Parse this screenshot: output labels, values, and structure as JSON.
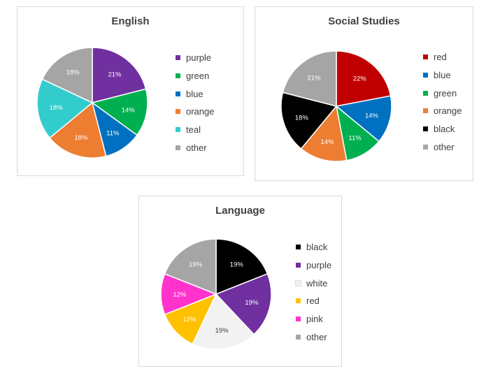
{
  "chart_data": [
    {
      "type": "pie",
      "title": "English",
      "categories": [
        "purple",
        "green",
        "blue",
        "orange",
        "teal",
        "other"
      ],
      "values": [
        21,
        14,
        11,
        18,
        18,
        18
      ],
      "labels": [
        "21%",
        "14%",
        "11%",
        "18%",
        "18%",
        "18%"
      ],
      "colors": [
        "#7030a0",
        "#00b050",
        "#0070c0",
        "#ed7d31",
        "#33cccc",
        "#a5a5a5"
      ],
      "label_colors": [
        "#ffffff",
        "#ffffff",
        "#ffffff",
        "#ffffff",
        "#ffffff",
        "#ffffff"
      ],
      "legend_position": "right"
    },
    {
      "type": "pie",
      "title": "Social Studies",
      "categories": [
        "red",
        "blue",
        "green",
        "orange",
        "black",
        "other"
      ],
      "values": [
        22,
        14,
        11,
        14,
        18,
        21
      ],
      "labels": [
        "22%",
        "14%",
        "11%",
        "14%",
        "18%",
        "21%"
      ],
      "colors": [
        "#c00000",
        "#0070c0",
        "#00b050",
        "#ed7d31",
        "#000000",
        "#a5a5a5"
      ],
      "label_colors": [
        "#ffffff",
        "#ffffff",
        "#ffffff",
        "#ffffff",
        "#ffffff",
        "#ffffff"
      ],
      "legend_position": "right"
    },
    {
      "type": "pie",
      "title": "Language",
      "categories": [
        "black",
        "purple",
        "white",
        "red",
        "pink",
        "other"
      ],
      "values": [
        19,
        19,
        19,
        12,
        12,
        19
      ],
      "labels": [
        "19%",
        "19%",
        "19%",
        "12%",
        "12%",
        "19%"
      ],
      "colors": [
        "#000000",
        "#7030a0",
        "#f2f2f2",
        "#ffc000",
        "#ff33cc",
        "#a5a5a5"
      ],
      "label_colors": [
        "#ffffff",
        "#ffffff",
        "#404040",
        "#ffffff",
        "#ffffff",
        "#ffffff"
      ],
      "legend_position": "right"
    }
  ]
}
